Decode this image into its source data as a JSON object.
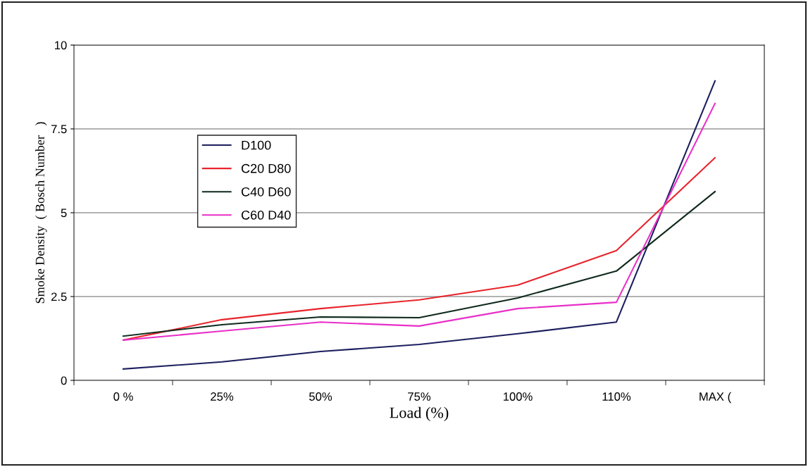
{
  "chart_data": {
    "type": "line",
    "xlabel": "Load (%)",
    "ylabel": "Smoke Density  ( Bosch Number   )",
    "categories": [
      "0 %",
      "25%",
      "50%",
      "75%",
      "100%",
      "110%",
      "MAX ("
    ],
    "series": [
      {
        "name": "D100",
        "color": "#1c1f5e",
        "values": [
          0.34,
          0.55,
          0.86,
          1.07,
          1.39,
          1.74,
          8.93
        ]
      },
      {
        "name": "C20 D80",
        "color": "#e8242c",
        "values": [
          1.2,
          1.81,
          2.14,
          2.4,
          2.84,
          3.87,
          6.64
        ]
      },
      {
        "name": "C40 D60",
        "color": "#0f2a1c",
        "values": [
          1.32,
          1.66,
          1.89,
          1.87,
          2.46,
          3.26,
          5.63
        ]
      },
      {
        "name": "C60 D40",
        "color": "#e82fc8",
        "values": [
          1.2,
          1.47,
          1.74,
          1.62,
          2.14,
          2.33,
          8.26
        ]
      }
    ],
    "ylim": [
      0,
      10
    ],
    "yticks": [
      0,
      2.5,
      5,
      7.5,
      10
    ],
    "grid": "y",
    "legend": "top left",
    "marker": "none",
    "line_style": "solid"
  }
}
